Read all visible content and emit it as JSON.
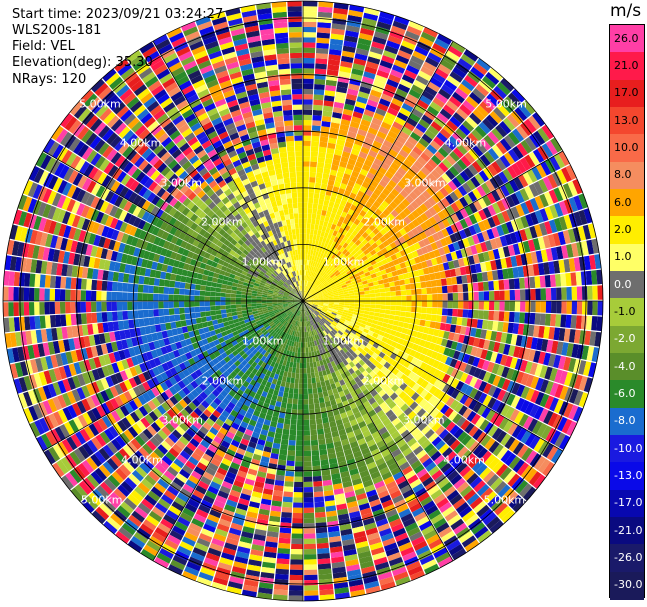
{
  "header": {
    "start_time": "Start time: 2023/09/21 03:24:27",
    "instrument": "WLS200s-181",
    "field": "Field: VEL",
    "elevation": "Elevation(deg): 35.30",
    "nrays": "NRays: 120"
  },
  "colorbar": {
    "unit": "m/s",
    "ticks": [
      {
        "label": "26.0",
        "color": "#ff3fa6"
      },
      {
        "label": "21.0",
        "color": "#ff1a4a"
      },
      {
        "label": "17.0",
        "color": "#e81e1e"
      },
      {
        "label": "13.0",
        "color": "#f4472e"
      },
      {
        "label": "10.0",
        "color": "#f96a48"
      },
      {
        "label": "8.0",
        "color": "#f58d5f"
      },
      {
        "label": "6.0",
        "color": "#ffa500"
      },
      {
        "label": "2.0",
        "color": "#ffee00"
      },
      {
        "label": "1.0",
        "color": "#ffff66"
      },
      {
        "label": "0.0",
        "color": "#6e6e6e"
      },
      {
        "label": "-1.0",
        "color": "#a7cc3a"
      },
      {
        "label": "-2.0",
        "color": "#7ca832"
      },
      {
        "label": "-4.0",
        "color": "#5a8e2a"
      },
      {
        "label": "-6.0",
        "color": "#2a8a2a"
      },
      {
        "label": "-8.0",
        "color": "#1a6ccf"
      },
      {
        "label": "-10.0",
        "color": "#1a1ae0"
      },
      {
        "label": "-13.0",
        "color": "#0a0ae8"
      },
      {
        "label": "-17.0",
        "color": "#0808b0"
      },
      {
        "label": "-21.0",
        "color": "#0a0a80"
      },
      {
        "label": "-26.0",
        "color": "#1a1a6a"
      },
      {
        "label": "-30.0",
        "color": "#1a1a5a"
      }
    ]
  },
  "range_rings": {
    "labels": [
      "1.00km",
      "2.00km",
      "3.00km",
      "4.00km",
      "5.00km"
    ]
  }
}
